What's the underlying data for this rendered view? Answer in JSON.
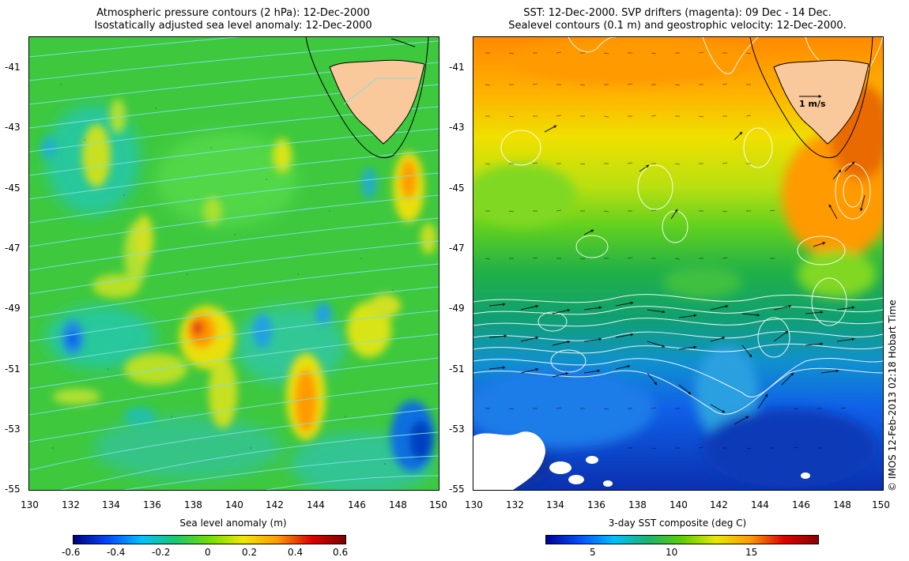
{
  "left_panel": {
    "title_line1": "Atmospheric pressure contours (2 hPa): 12-Dec-2000",
    "title_line2": "Isostatically adjusted sea level anomaly: 12-Dec-2000",
    "x_ticks": [
      "130",
      "132",
      "134",
      "136",
      "138",
      "140",
      "142",
      "144",
      "146",
      "148",
      "150"
    ],
    "y_ticks": [
      "-41",
      "-43",
      "-45",
      "-47",
      "-49",
      "-51",
      "-53",
      "-55"
    ],
    "colorbar_title": "Sea level anomaly (m)",
    "colorbar_ticks": [
      "-0.6",
      "-0.4",
      "-0.2",
      "0",
      "0.2",
      "0.4",
      "0.6"
    ]
  },
  "right_panel": {
    "title_line1": "SST: 12-Dec-2000. SVP drifters (magenta): 09 Dec - 14 Dec.",
    "title_line2": "Sealevel contours (0.1 m) and geostrophic velocity: 12-Dec-2000.",
    "x_ticks": [
      "130",
      "132",
      "134",
      "136",
      "138",
      "140",
      "142",
      "144",
      "146",
      "148",
      "150"
    ],
    "y_ticks": [
      "-41",
      "-43",
      "-45",
      "-47",
      "-49",
      "-51",
      "-53",
      "-55"
    ],
    "velocity_scale_label": "1 m/s",
    "colorbar_title": "3-day SST composite (deg C)",
    "colorbar_ticks": [
      "5",
      "10",
      "15"
    ]
  },
  "credit": "© IMOS 12-Feb-2013 02:18 Hobart Time",
  "colors": {
    "land": "#f9c89b",
    "pressure_contour": "#7fe0e0",
    "sla_scale": [
      "#00007f",
      "#0047ff",
      "#00c2ff",
      "#19c86e",
      "#6fe000",
      "#f0e800",
      "#ff9a00",
      "#e00000",
      "#7f0000"
    ],
    "sst_scale": [
      "#00009a",
      "#0050ff",
      "#00c0ff",
      "#19b46e",
      "#5cd000",
      "#e8e800",
      "#ff9a00",
      "#e00000",
      "#8b0000"
    ]
  }
}
